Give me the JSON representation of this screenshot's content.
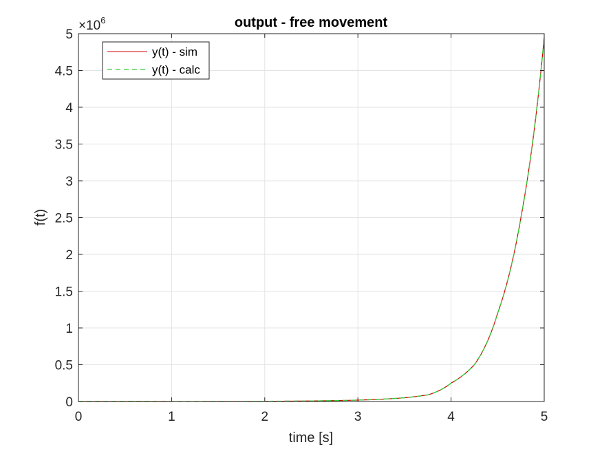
{
  "chart_data": {
    "type": "line",
    "title": "output - free movement",
    "xlabel": "time [s]",
    "ylabel": "f(t)",
    "y_exponent_label": "×10",
    "y_exponent_power": "6",
    "xlim": [
      0,
      5
    ],
    "ylim": [
      0,
      5
    ],
    "y_scale": 1000000,
    "xticks": [
      "0",
      "1",
      "2",
      "3",
      "4",
      "5"
    ],
    "yticks": [
      "0",
      "0.5",
      "1",
      "1.5",
      "2",
      "2.5",
      "3",
      "3.5",
      "4",
      "4.5",
      "5"
    ],
    "grid": true,
    "legend_position": "top-left",
    "series": [
      {
        "name": "y(t) - sim",
        "color": "#d00000",
        "style": "solid",
        "x": [
          0,
          1,
          2,
          2.5,
          3,
          3.25,
          3.5,
          3.75,
          4,
          4.25,
          4.5,
          4.75,
          5
        ],
        "y": [
          0,
          400,
          3000,
          7500,
          19000,
          31000,
          51000,
          90000,
          250000,
          500000,
          1200000,
          2500000,
          4950000
        ]
      },
      {
        "name": "y(t) - calc",
        "color": "#33cc33",
        "style": "dashed",
        "x": [
          0,
          1,
          2,
          2.5,
          3,
          3.25,
          3.5,
          3.75,
          4,
          4.25,
          4.5,
          4.75,
          5
        ],
        "y": [
          0,
          400,
          3000,
          7500,
          19000,
          31000,
          51000,
          90000,
          250000,
          500000,
          1200000,
          2500000,
          4950000
        ]
      }
    ]
  }
}
